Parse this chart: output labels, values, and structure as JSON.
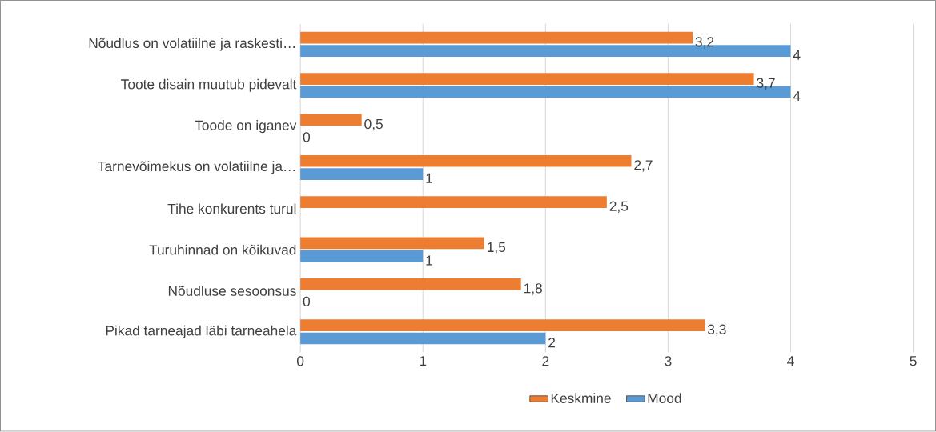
{
  "chart_data": {
    "type": "bar",
    "orientation": "horizontal",
    "categories": [
      "Nõudlus on volatiilne ja raskesti…",
      "Toote disain muutub pidevalt",
      "Toode on iganev",
      "Tarnevõimekus on volatiilne ja…",
      "Tihe konkurents turul",
      "Turuhinnad on kõikuvad",
      "Nõudluse sesoonsus",
      "Pikad tarneajad läbi tarneahela"
    ],
    "series": [
      {
        "name": "Keskmine",
        "color": "#ed7d31",
        "values": [
          3.2,
          3.7,
          0.5,
          2.7,
          2.5,
          1.5,
          1.8,
          3.3
        ],
        "value_labels": [
          "3,2",
          "3,7",
          "0,5",
          "2,7",
          "2,5",
          "1,5",
          "1,8",
          "3,3"
        ]
      },
      {
        "name": "Mood",
        "color": "#5b9bd5",
        "values": [
          4,
          4,
          0,
          1,
          null,
          1,
          0,
          2
        ],
        "value_labels": [
          "4",
          "4",
          "0",
          "1",
          null,
          "1",
          "0",
          "2"
        ]
      }
    ],
    "xlim": [
      0,
      5
    ],
    "xticks": [
      0,
      1,
      2,
      3,
      4,
      5
    ],
    "grid": "x",
    "legend": "bottom"
  }
}
